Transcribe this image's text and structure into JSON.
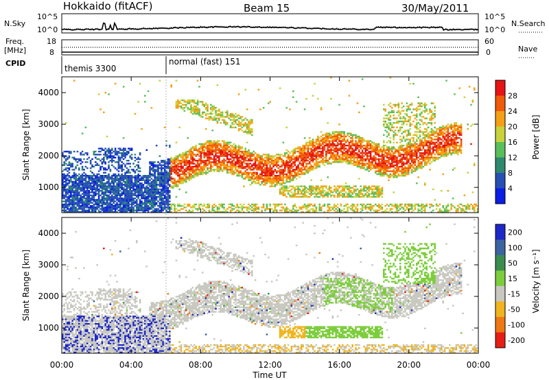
{
  "header": {
    "station": "Hokkaido (fitACF)",
    "beam": "Beam 15",
    "date": "30/May/2011"
  },
  "noise_panel": {
    "left_label": "N.Sky",
    "left_ticks": [
      "10^5",
      "10^0"
    ],
    "right_label": "N.Search",
    "right_ticks": [
      "10^5",
      "10^0"
    ]
  },
  "freq_panel": {
    "left_label_line1": "Freq.",
    "left_label_line2": "[MHz]",
    "left_ticks": [
      "18",
      "8"
    ],
    "right_label": "Nave",
    "right_ticks": [
      "60",
      "0"
    ]
  },
  "cpid_panel": {
    "label": "CPID",
    "modes": [
      {
        "name": "themis 3300",
        "start_hour": 0
      },
      {
        "name": "normal (fast) 151",
        "start_hour": 6
      }
    ]
  },
  "chart_data": [
    {
      "type": "heatmap",
      "name": "power",
      "ylabel": "Slant Range [km]",
      "ylim": [
        200,
        4500
      ],
      "yticks": [
        1000,
        2000,
        3000,
        4000
      ],
      "colorbar_label": "Power [dB]",
      "colorbar_ticks": [
        "4",
        "8",
        "12",
        "16",
        "20",
        "24",
        "28"
      ],
      "colorbar_range": [
        0,
        30
      ],
      "colors": [
        "#0a1ee6",
        "#2850b4",
        "#2d8a6e",
        "#5abf5a",
        "#c8d23c",
        "#f5a014",
        "#f05a0a",
        "#e61414"
      ]
    },
    {
      "type": "heatmap",
      "name": "velocity",
      "ylabel": "Slant Range [km]",
      "ylim": [
        200,
        4500
      ],
      "yticks": [
        1000,
        2000,
        3000,
        4000
      ],
      "colorbar_label": "Velocity [m s^-1]",
      "colorbar_ticks": [
        "200",
        "100",
        "50",
        "15",
        "-15",
        "-50",
        "-100",
        "-200"
      ],
      "colors": [
        "#1e28c8",
        "#3c64a0",
        "#3c8c50",
        "#7ccd3c",
        "#c8c8c0",
        "#f0b41e",
        "#f07814",
        "#e61e14"
      ]
    }
  ],
  "x_axis": {
    "label": "Time UT",
    "ticks": [
      "00:00",
      "04:00",
      "08:00",
      "12:00",
      "16:00",
      "20:00",
      "00:00"
    ],
    "range_hours": [
      0,
      24
    ]
  }
}
